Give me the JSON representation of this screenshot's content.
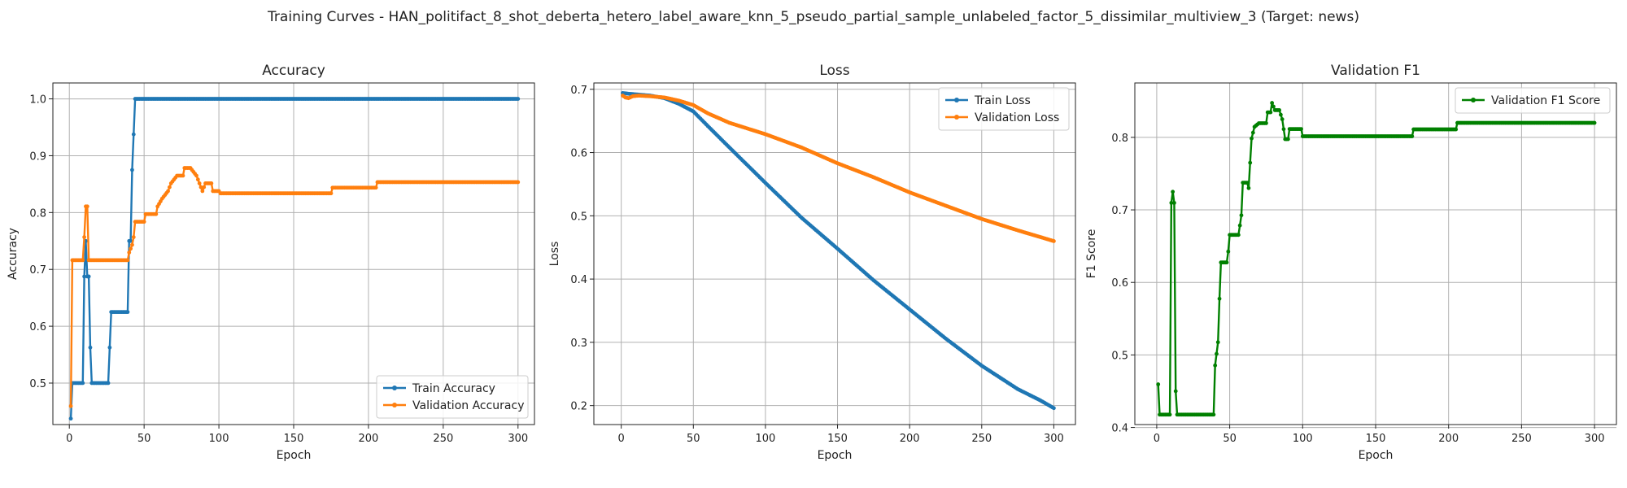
{
  "figure": {
    "suptitle": "Training Curves - HAN_politifact_8_shot_deberta_hetero_label_aware_knn_5_pseudo_partial_sample_unlabeled_factor_5_dissimilar_multiview_3 (Target: news)"
  },
  "colors": {
    "train": "#1f77b4",
    "validation": "#ff7f0e",
    "f1": "#008000"
  },
  "chart_data": [
    {
      "type": "line",
      "title": "Accuracy",
      "xlabel": "Epoch",
      "ylabel": "Accuracy",
      "xlim": [
        -11,
        311
      ],
      "ylim": [
        0.427,
        1.028
      ],
      "xticks": [
        0,
        50,
        100,
        150,
        200,
        250,
        300
      ],
      "yticks": [
        0.5,
        0.6,
        0.7,
        0.8,
        0.9,
        1.0
      ],
      "ytick_labels": [
        "0.5",
        "0.6",
        "0.7",
        "0.8",
        "0.9",
        "1.0"
      ],
      "grid": true,
      "legend_position": "lower-right",
      "marker": "dot",
      "series": [
        {
          "name": "Train Accuracy",
          "color": "#1f77b4",
          "points": [
            [
              1,
              0.4375
            ],
            [
              2,
              0.5
            ],
            [
              9,
              0.5
            ],
            [
              10,
              0.6875
            ],
            [
              11,
              0.75
            ],
            [
              12,
              0.6875
            ],
            [
              13,
              0.6875
            ],
            [
              14,
              0.5625
            ],
            [
              15,
              0.5
            ],
            [
              26,
              0.5
            ],
            [
              27,
              0.5625
            ],
            [
              28,
              0.625
            ],
            [
              39,
              0.625
            ],
            [
              40,
              0.75
            ],
            [
              41,
              0.75
            ],
            [
              42,
              0.875
            ],
            [
              43,
              0.9375
            ],
            [
              44,
              1.0
            ],
            [
              300,
              1.0
            ]
          ]
        },
        {
          "name": "Validation Accuracy",
          "color": "#ff7f0e",
          "points": [
            [
              1,
              0.4595
            ],
            [
              2,
              0.7162
            ],
            [
              9,
              0.7162
            ],
            [
              10,
              0.7568
            ],
            [
              11,
              0.8108
            ],
            [
              12,
              0.8108
            ],
            [
              13,
              0.7162
            ],
            [
              38,
              0.7162
            ],
            [
              39,
              0.7162
            ],
            [
              40,
              0.7297
            ],
            [
              42,
              0.7432
            ],
            [
              43,
              0.7568
            ],
            [
              44,
              0.7838
            ],
            [
              50,
              0.7838
            ],
            [
              51,
              0.7973
            ],
            [
              58,
              0.7973
            ],
            [
              59,
              0.8108
            ],
            [
              62,
              0.8243
            ],
            [
              66,
              0.8378
            ],
            [
              68,
              0.8514
            ],
            [
              72,
              0.8649
            ],
            [
              76,
              0.8649
            ],
            [
              77,
              0.8784
            ],
            [
              80,
              0.8784
            ],
            [
              81,
              0.8784
            ],
            [
              85,
              0.8649
            ],
            [
              87,
              0.8514
            ],
            [
              89,
              0.8378
            ],
            [
              91,
              0.8514
            ],
            [
              95,
              0.8514
            ],
            [
              96,
              0.8378
            ],
            [
              100,
              0.8378
            ],
            [
              101,
              0.8338
            ],
            [
              175,
              0.8338
            ],
            [
              176,
              0.8438
            ],
            [
              205,
              0.8438
            ],
            [
              206,
              0.8535
            ],
            [
              300,
              0.8535
            ]
          ]
        }
      ]
    },
    {
      "type": "line",
      "title": "Loss",
      "xlabel": "Epoch",
      "ylabel": "Loss",
      "xlim": [
        -19,
        315
      ],
      "ylim": [
        0.17,
        0.71
      ],
      "xticks": [
        0,
        50,
        100,
        150,
        200,
        250,
        300
      ],
      "yticks": [
        0.2,
        0.3,
        0.4,
        0.5,
        0.6,
        0.7
      ],
      "ytick_labels": [
        "0.2",
        "0.3",
        "0.4",
        "0.5",
        "0.6",
        "0.7"
      ],
      "grid": true,
      "legend_position": "top-right",
      "marker": "dot",
      "series": [
        {
          "name": "Train Loss",
          "color": "#1f77b4",
          "points": [
            [
              1,
              0.694
            ],
            [
              5,
              0.693
            ],
            [
              10,
              0.692
            ],
            [
              20,
              0.69
            ],
            [
              30,
              0.686
            ],
            [
              40,
              0.677
            ],
            [
              50,
              0.665
            ],
            [
              60,
              0.642
            ],
            [
              75,
              0.608
            ],
            [
              100,
              0.552
            ],
            [
              125,
              0.497
            ],
            [
              150,
              0.448
            ],
            [
              175,
              0.398
            ],
            [
              200,
              0.352
            ],
            [
              225,
              0.306
            ],
            [
              250,
              0.263
            ],
            [
              275,
              0.226
            ],
            [
              290,
              0.209
            ],
            [
              300,
              0.196
            ]
          ]
        },
        {
          "name": "Validation Loss",
          "color": "#ff7f0e",
          "points": [
            [
              1,
              0.69
            ],
            [
              3,
              0.687
            ],
            [
              5,
              0.686
            ],
            [
              8,
              0.689
            ],
            [
              12,
              0.69
            ],
            [
              20,
              0.689
            ],
            [
              30,
              0.687
            ],
            [
              40,
              0.682
            ],
            [
              50,
              0.675
            ],
            [
              60,
              0.662
            ],
            [
              75,
              0.647
            ],
            [
              100,
              0.629
            ],
            [
              125,
              0.608
            ],
            [
              150,
              0.583
            ],
            [
              175,
              0.561
            ],
            [
              200,
              0.537
            ],
            [
              225,
              0.516
            ],
            [
              250,
              0.495
            ],
            [
              275,
              0.477
            ],
            [
              300,
              0.46
            ]
          ]
        }
      ]
    },
    {
      "type": "line",
      "title": "Validation F1",
      "xlabel": "Epoch",
      "ylabel": "F1 Score",
      "xlim": [
        -15,
        315
      ],
      "ylim": [
        0.404,
        0.875
      ],
      "xticks": [
        0,
        50,
        100,
        150,
        200,
        250,
        300
      ],
      "yticks": [
        0.4,
        0.5,
        0.6,
        0.7,
        0.8
      ],
      "ytick_labels": [
        "0.4",
        "0.5",
        "0.6",
        "0.7",
        "0.8"
      ],
      "grid": true,
      "legend_position": "top-right",
      "marker": "dot",
      "series": [
        {
          "name": "Validation F1 Score",
          "color": "#008000",
          "points": [
            [
              1,
              0.4595
            ],
            [
              2,
              0.4177
            ],
            [
              9,
              0.4177
            ],
            [
              10,
              0.7097
            ],
            [
              11,
              0.725
            ],
            [
              12,
              0.7097
            ],
            [
              13,
              0.45
            ],
            [
              14,
              0.4177
            ],
            [
              39,
              0.4177
            ],
            [
              40,
              0.4855
            ],
            [
              42,
              0.5175
            ],
            [
              43,
              0.5775
            ],
            [
              44,
              0.6275
            ],
            [
              48,
              0.6275
            ],
            [
              49,
              0.6425
            ],
            [
              50,
              0.6655
            ],
            [
              56,
              0.6655
            ],
            [
              57,
              0.6785
            ],
            [
              58,
              0.6925
            ],
            [
              59,
              0.7375
            ],
            [
              62,
              0.7375
            ],
            [
              63,
              0.73
            ],
            [
              64,
              0.765
            ],
            [
              65,
              0.7985
            ],
            [
              67,
              0.8145
            ],
            [
              70,
              0.8195
            ],
            [
              75,
              0.8195
            ],
            [
              76,
              0.8345
            ],
            [
              78,
              0.8345
            ],
            [
              79,
              0.8475
            ],
            [
              81,
              0.8375
            ],
            [
              84,
              0.8375
            ],
            [
              86,
              0.825
            ],
            [
              88,
              0.7975
            ],
            [
              90,
              0.7975
            ],
            [
              91,
              0.8115
            ],
            [
              99,
              0.8115
            ],
            [
              100,
              0.8015
            ],
            [
              175,
              0.8015
            ],
            [
              176,
              0.811
            ],
            [
              205,
              0.811
            ],
            [
              206,
              0.82
            ],
            [
              300,
              0.82
            ]
          ]
        }
      ]
    }
  ]
}
